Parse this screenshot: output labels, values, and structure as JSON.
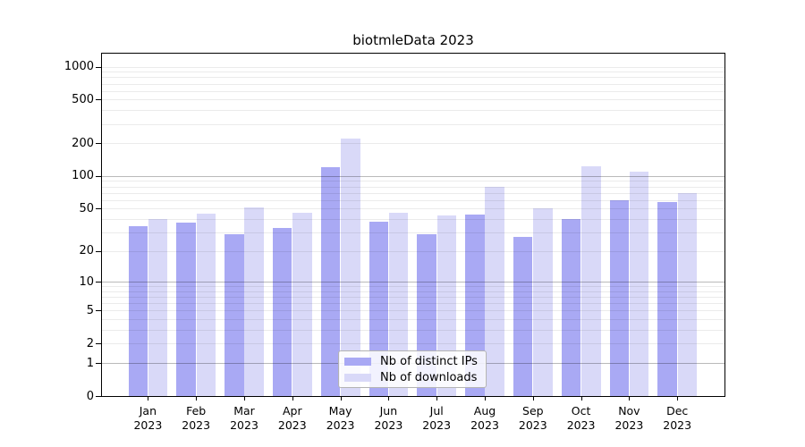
{
  "title": "biotmleData 2023",
  "chart_data": {
    "type": "bar",
    "title": "biotmleData 2023",
    "categories": [
      "Jan 2023",
      "Feb 2023",
      "Mar 2023",
      "Apr 2023",
      "May 2023",
      "Jun 2023",
      "Jul 2023",
      "Aug 2023",
      "Sep 2023",
      "Oct 2023",
      "Nov 2023",
      "Dec 2023"
    ],
    "month_line1": [
      "Jan",
      "Feb",
      "Mar",
      "Apr",
      "May",
      "Jun",
      "Jul",
      "Aug",
      "Sep",
      "Oct",
      "Nov",
      "Dec"
    ],
    "month_line2": "2023",
    "series": [
      {
        "name": "Nb of distinct IPs",
        "color": "#a9a9f4",
        "values": [
          34,
          37,
          29,
          33,
          120,
          38,
          29,
          44,
          27,
          40,
          60,
          57
        ]
      },
      {
        "name": "Nb of downloads",
        "color": "#d9d9f8",
        "values": [
          40,
          45,
          51,
          46,
          220,
          46,
          43,
          80,
          50,
          122,
          110,
          70
        ]
      }
    ],
    "xlabel": "",
    "ylabel": "",
    "yscale": "log1p",
    "ytick_values": [
      1000,
      500,
      200,
      100,
      50,
      20,
      10,
      5,
      2,
      1,
      0
    ],
    "ytick_labels": [
      "1000",
      "500",
      "200",
      "100",
      "50",
      "20",
      "10",
      "5",
      "2",
      "1",
      "0"
    ],
    "ylim": [
      0,
      1315
    ],
    "grid": "horizontal; light lines at 1-9 mantissa steps, darker lines at 1, 10, 100",
    "grid_decades_dark": [
      1,
      10,
      100
    ],
    "legend_position": "lower center inside plot",
    "legend_entries": [
      "Nb of distinct IPs",
      "Nb of downloads"
    ]
  },
  "colors": {
    "distinct_ips_bar": "#a9a9f4",
    "downloads_bar": "#d9d9f8",
    "grid_minor": "rgba(0,0,0,0.08)",
    "grid_major": "rgba(0,0,0,0.27)",
    "spine": "#000000",
    "legend_border": "#b3b3b3"
  }
}
